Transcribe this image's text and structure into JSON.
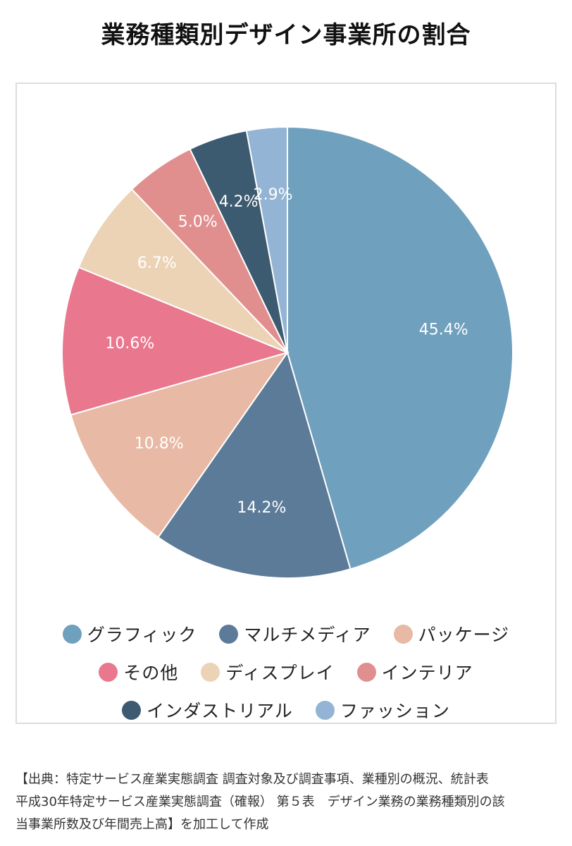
{
  "title": "業務種類別デザイン事業所の割合",
  "chart_data": {
    "type": "pie",
    "title": "業務種類別デザイン事業所の割合",
    "categories": [
      "グラフィック",
      "マルチメディア",
      "パッケージ",
      "その他",
      "ディスプレイ",
      "インテリア",
      "インダストリアル",
      "ファッション"
    ],
    "values": [
      45.4,
      14.2,
      10.8,
      10.6,
      6.7,
      5.0,
      4.2,
      2.9
    ],
    "data_labels": [
      "45.4%",
      "14.2%",
      "10.8%",
      "10.6%",
      "6.7%",
      "5.0%",
      "4.2%",
      "2.9%"
    ],
    "colors": [
      "#6fa0bd",
      "#5b7b98",
      "#e8b9a5",
      "#e9778e",
      "#ecd3b6",
      "#e08f8e",
      "#3c5a70",
      "#93b4d4"
    ],
    "start": "12 o'clock, clockwise",
    "legend_position": "bottom"
  },
  "legend": {
    "rows": [
      [
        {
          "label": "グラフィック",
          "color": "#6fa0bd"
        },
        {
          "label": "マルチメディア",
          "color": "#5b7b98"
        },
        {
          "label": "パッケージ",
          "color": "#e8b9a5"
        }
      ],
      [
        {
          "label": "その他",
          "color": "#e9778e"
        },
        {
          "label": "ディスプレイ",
          "color": "#ecd3b6"
        },
        {
          "label": "インテリア",
          "color": "#e08f8e"
        }
      ],
      [
        {
          "label": "インダストリアル",
          "color": "#3c5a70"
        },
        {
          "label": "ファッション",
          "color": "#93b4d4"
        }
      ]
    ]
  },
  "source": {
    "lines": [
      "【出典：特定サービス産業実態調査 調査対象及び調査事項、業種別の概況、統計表",
      "平成30年特定サービス産業実態調査（確報） 第５表　デザイン業務の業務種類別の該",
      "当事業所数及び年間売上高】を加工して作成"
    ]
  }
}
